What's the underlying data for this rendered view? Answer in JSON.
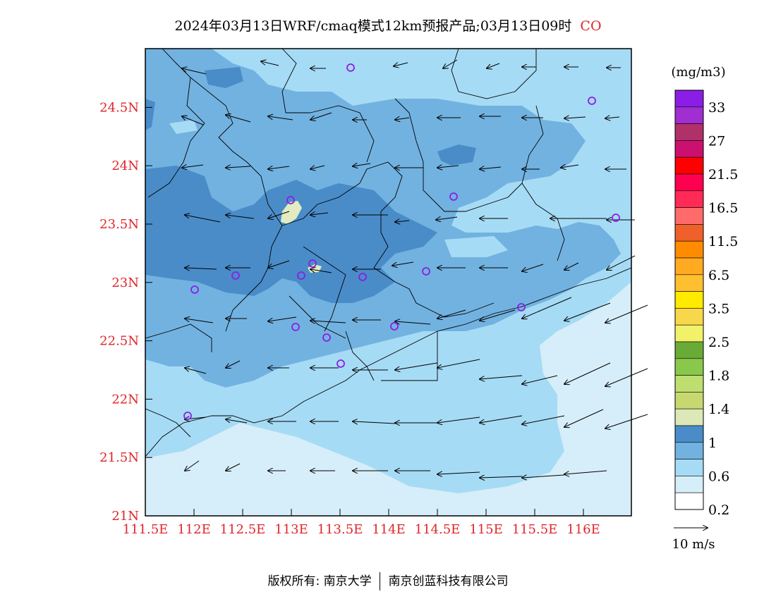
{
  "title": {
    "main": "2024年03月13日WRF/cmaq模式12km预报产品;03月13日09时",
    "pollutant": "CO"
  },
  "map": {
    "lat_labels": [
      "24.5N",
      "24N",
      "23.5N",
      "23N",
      "22.5N",
      "22N",
      "21.5N",
      "21N"
    ],
    "lon_labels": [
      "111.5E",
      "112E",
      "112.5E",
      "113E",
      "113.5E",
      "114E",
      "114.5E",
      "115E",
      "115.5E",
      "116E"
    ],
    "colors": {
      "sea_low": "#d6eef9",
      "band_02_06": "#a6dbf5",
      "band_06_1a": "#72b2e0",
      "band_06_1b": "#4a8cc8",
      "band_1_14": "#e2ecc0",
      "station": "#8a1ee6"
    }
  },
  "legend": {
    "unit": "(mg/m3)",
    "labels": [
      "33",
      "27",
      "21.5",
      "16.5",
      "11.5",
      "6.5",
      "3.5",
      "2.5",
      "1.8",
      "1.4",
      "1",
      "0.6",
      "0.2"
    ],
    "swatches": [
      "#8a1ee6",
      "#a02ed0",
      "#b0306a",
      "#cc1070",
      "#ff0000",
      "#ff0050",
      "#ff2a55",
      "#ff6a6a",
      "#f0602a",
      "#ff8c00",
      "#ffaa20",
      "#ffc030",
      "#ffea00",
      "#f8d84a",
      "#f2f26a",
      "#6aaa36",
      "#8ac84c",
      "#bede70",
      "#c8d870",
      "#dde8b8",
      "#4a8cc8",
      "#72b2e0",
      "#a6dbf5",
      "#d6eef9",
      "#ffffff"
    ],
    "wind_ref": "10 m/s"
  },
  "copyright": {
    "label": "版权所有: 南京大学",
    "org": "南京创蓝科技有限公司"
  }
}
